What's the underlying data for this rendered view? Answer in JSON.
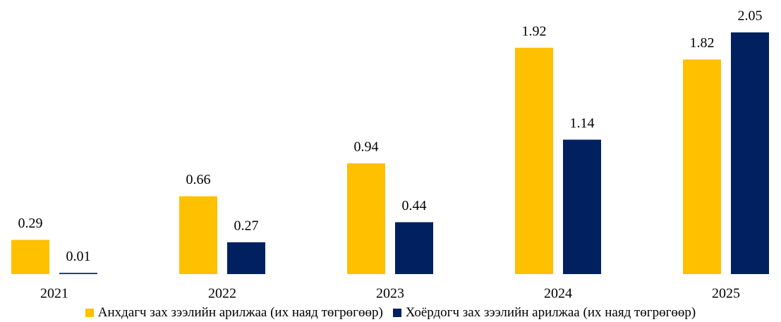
{
  "chart_data": {
    "type": "bar",
    "categories": [
      "2021",
      "2022",
      "2023",
      "2024",
      "2025"
    ],
    "series": [
      {
        "name": "Анхдагч зах зээлийн арилжаа (их наяд төгрөгөөр)",
        "color": "#FFC000",
        "values": [
          0.29,
          0.66,
          0.94,
          1.92,
          1.82
        ]
      },
      {
        "name": "Хоёрдогч зах зээлийн арилжаа (их наяд төгрөгөөр)",
        "color": "#002060",
        "values": [
          0.01,
          0.27,
          0.44,
          1.14,
          2.05
        ]
      }
    ],
    "legend": "bottom"
  }
}
